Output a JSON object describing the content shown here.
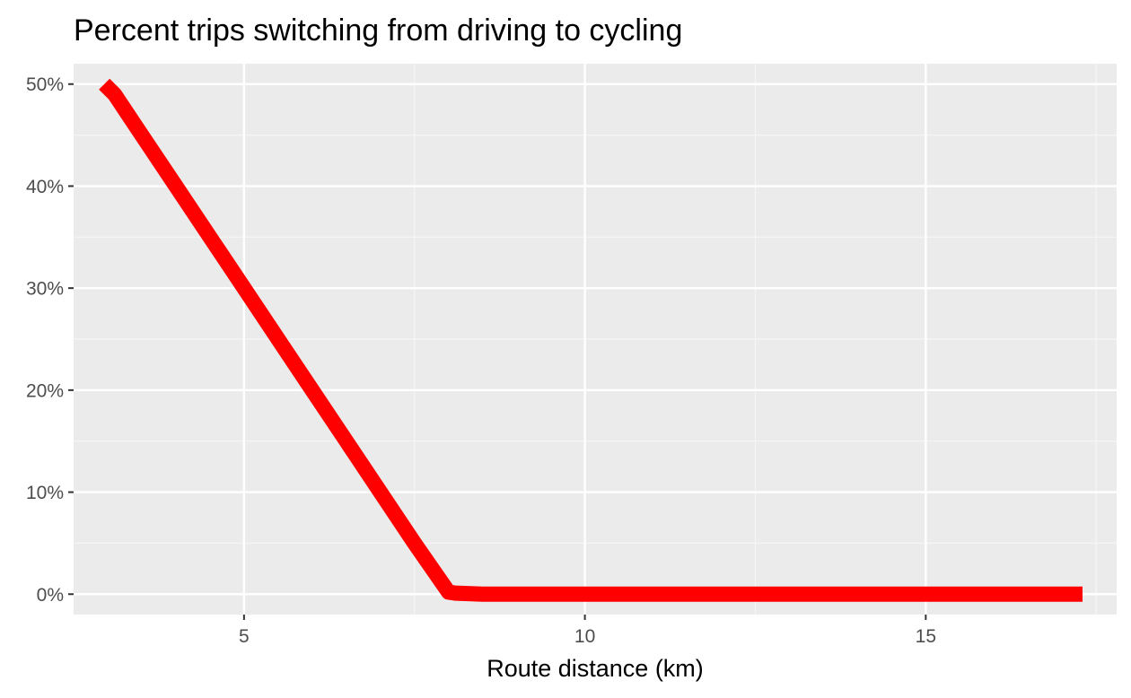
{
  "chart_data": {
    "type": "line",
    "title": "Percent trips switching from driving to cycling",
    "xlabel": "Route distance (km)",
    "ylabel": "",
    "xlim": [
      2.5,
      17.8
    ],
    "ylim": [
      -0.02,
      0.52
    ],
    "x_ticks": [
      5,
      10,
      15
    ],
    "x_tick_labels": [
      "5",
      "10",
      "15"
    ],
    "y_ticks": [
      0,
      0.1,
      0.2,
      0.3,
      0.4,
      0.5
    ],
    "y_tick_labels": [
      "0%",
      "10%",
      "20%",
      "30%",
      "40%",
      "50%"
    ],
    "grid": true,
    "legend": "none",
    "series": [
      {
        "color": "#ff0000",
        "x": [
          2.95,
          3.1,
          3.5,
          4.0,
          4.5,
          5.0,
          5.5,
          6.0,
          6.5,
          7.0,
          7.5,
          8.0,
          8.1,
          8.5,
          9.0,
          10.0,
          11.0,
          12.0,
          13.0,
          14.0,
          15.0,
          16.0,
          17.0,
          17.3
        ],
        "y": [
          0.5,
          0.49,
          0.45,
          0.4,
          0.35,
          0.3,
          0.25,
          0.2,
          0.15,
          0.1,
          0.05,
          0.002,
          0.001,
          0.0,
          0.0,
          0.0,
          0.0,
          0.0,
          0.0,
          0.0,
          0.0,
          0.0,
          0.0,
          0.0
        ]
      }
    ],
    "colors": {
      "panel_background": "#ebebeb",
      "grid_major": "#ffffff",
      "grid_minor": "#f5f5f5",
      "tick": "#333333"
    }
  }
}
